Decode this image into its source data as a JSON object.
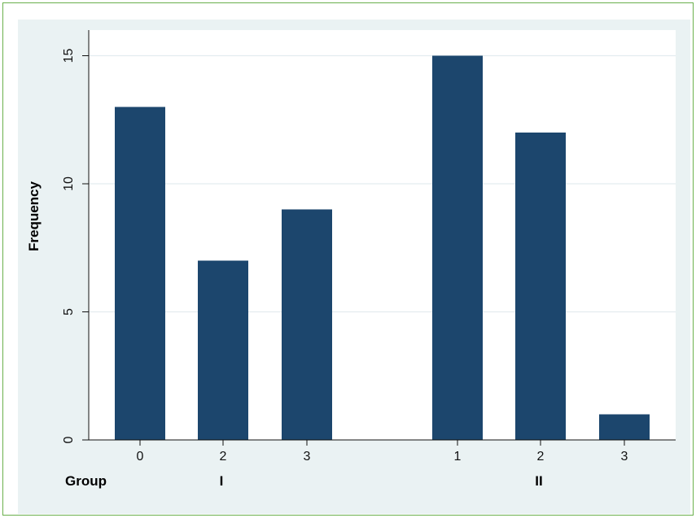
{
  "colors": {
    "bar": "#1c466d",
    "plot_background": "#ffffff",
    "outer_background": "#eaf2f3",
    "grid": "#e3ecef",
    "frame": "#6ab04c"
  },
  "chart_data": {
    "type": "bar",
    "title": "",
    "xlabel": "",
    "ylabel": "Frequency",
    "ylim": [
      0,
      16
    ],
    "yticks": [
      0,
      5,
      10,
      15
    ],
    "grid": true,
    "legend": "none",
    "group_axis_label": "Group",
    "groups": [
      {
        "label": "I",
        "categories": [
          "0",
          "2",
          "3"
        ],
        "values": [
          13,
          7,
          9
        ]
      },
      {
        "label": "II",
        "categories": [
          "1",
          "2",
          "3"
        ],
        "values": [
          15,
          12,
          1
        ]
      }
    ]
  }
}
